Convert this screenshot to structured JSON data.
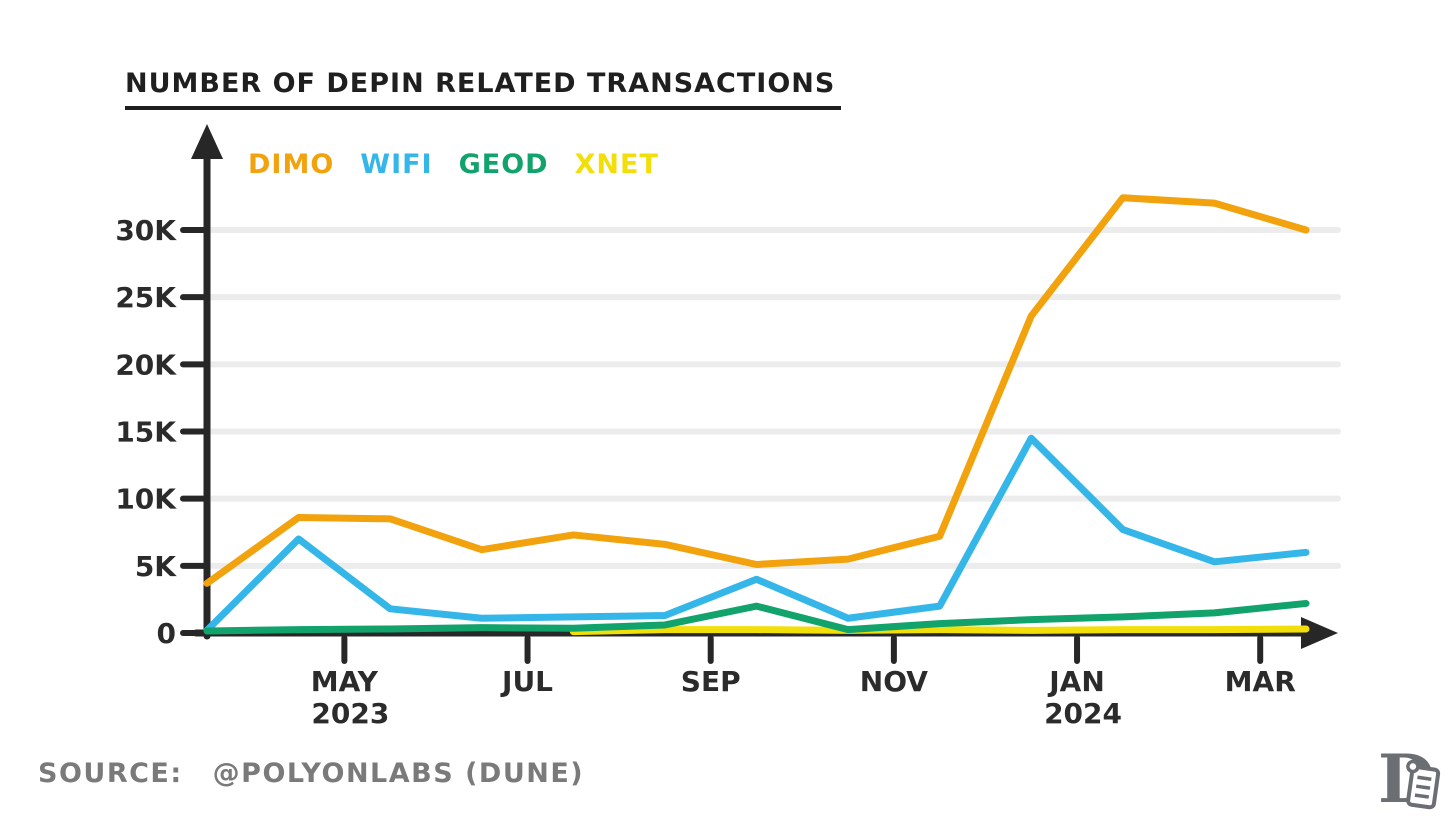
{
  "page": {
    "background": "#ffffff"
  },
  "title": {
    "text": "NUMBER OF DEPIN RELATED TRANSACTIONS"
  },
  "legend": {
    "items": [
      {
        "label": "DIMO",
        "color": "#F2A20D"
      },
      {
        "label": "WIFI",
        "color": "#35B6E9"
      },
      {
        "label": "GEOD",
        "color": "#12A36C"
      },
      {
        "label": "XNET",
        "color": "#F2DF0A"
      }
    ]
  },
  "source": {
    "label": "SOURCE:",
    "text": "@POLYONLABS (DUNE)"
  },
  "logo": {
    "name": "publication-logo-d"
  },
  "chart_data": {
    "type": "line",
    "title": "NUMBER OF DEPIN RELATED TRANSACTIONS",
    "x": [
      "Apr 2023",
      "May 2023",
      "Jun 2023",
      "Jul 2023",
      "Aug 2023",
      "Sep 2023",
      "Oct 2023",
      "Nov 2023",
      "Dec 2023",
      "Jan 2024",
      "Feb 2024",
      "Mar 2024",
      "Apr 2024"
    ],
    "legend": [
      "DIMO",
      "WIFI",
      "GEOD",
      "XNET"
    ],
    "legend_position": "top-left-inside",
    "grid": true,
    "ylim": [
      0,
      34000
    ],
    "y_ticks": [
      {
        "value": 0,
        "label": "0"
      },
      {
        "value": 5000,
        "label": "5K"
      },
      {
        "value": 10000,
        "label": "10K"
      },
      {
        "value": 15000,
        "label": "15K"
      },
      {
        "value": 20000,
        "label": "20K"
      },
      {
        "value": 25000,
        "label": "25K"
      },
      {
        "value": 30000,
        "label": "30K"
      }
    ],
    "x_ticks": [
      {
        "pos": 1.5,
        "label": "MAY",
        "year": "2023"
      },
      {
        "pos": 3.5,
        "label": "JUL"
      },
      {
        "pos": 5.5,
        "label": "SEP"
      },
      {
        "pos": 7.5,
        "label": "NOV"
      },
      {
        "pos": 9.5,
        "label": "JAN",
        "year": "2024"
      },
      {
        "pos": 11.5,
        "label": "MAR"
      }
    ],
    "series": [
      {
        "name": "DIMO",
        "color": "#F2A20D",
        "values": [
          3700,
          8600,
          8500,
          6200,
          7300,
          6600,
          5100,
          5500,
          7200,
          23600,
          32400,
          32000,
          30000
        ]
      },
      {
        "name": "WIFI",
        "color": "#35B6E9",
        "values": [
          200,
          7000,
          1800,
          1100,
          1200,
          1300,
          4000,
          1100,
          2000,
          14500,
          7700,
          5300,
          6000
        ]
      },
      {
        "name": "XNET",
        "color": "#F2DF0A",
        "values": [
          null,
          null,
          null,
          null,
          100,
          250,
          250,
          200,
          250,
          200,
          250,
          250,
          300
        ]
      },
      {
        "name": "GEOD",
        "color": "#12A36C",
        "values": [
          150,
          250,
          300,
          400,
          350,
          600,
          2000,
          250,
          700,
          1000,
          1200,
          1500,
          2200
        ]
      }
    ]
  }
}
